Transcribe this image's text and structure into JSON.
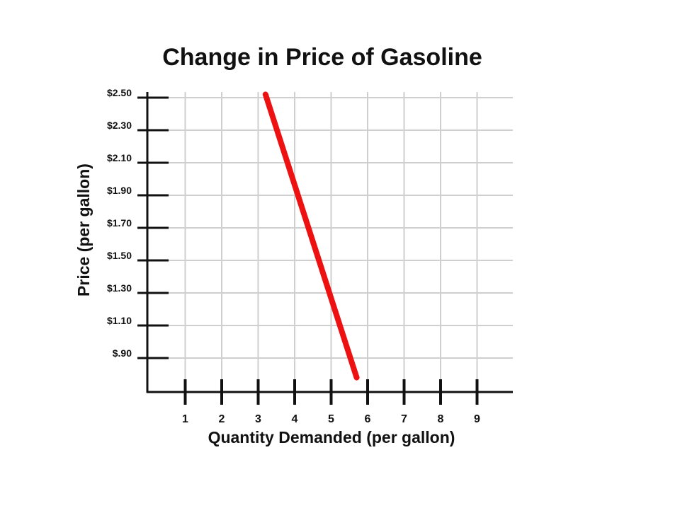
{
  "chart_data": {
    "type": "line",
    "title": "Change in Price of Gasoline",
    "xlabel": "Quantity Demanded (per gallon)",
    "ylabel": "Price (per gallon)",
    "x_ticks": [
      "1",
      "2",
      "3",
      "4",
      "5",
      "6",
      "7",
      "8",
      "9"
    ],
    "y_ticks": [
      "$.90",
      "$1.10",
      "$1.30",
      "$1.50",
      "$1.70",
      "$1.90",
      "$2.10",
      "$2.30",
      "$2.50"
    ],
    "xlim": [
      0,
      10
    ],
    "ylim": [
      0.7,
      2.5
    ],
    "grid": true,
    "series": [
      {
        "color": "#ee1111",
        "x": [
          3.2,
          5.7
        ],
        "y": [
          2.52,
          0.78
        ]
      }
    ]
  }
}
